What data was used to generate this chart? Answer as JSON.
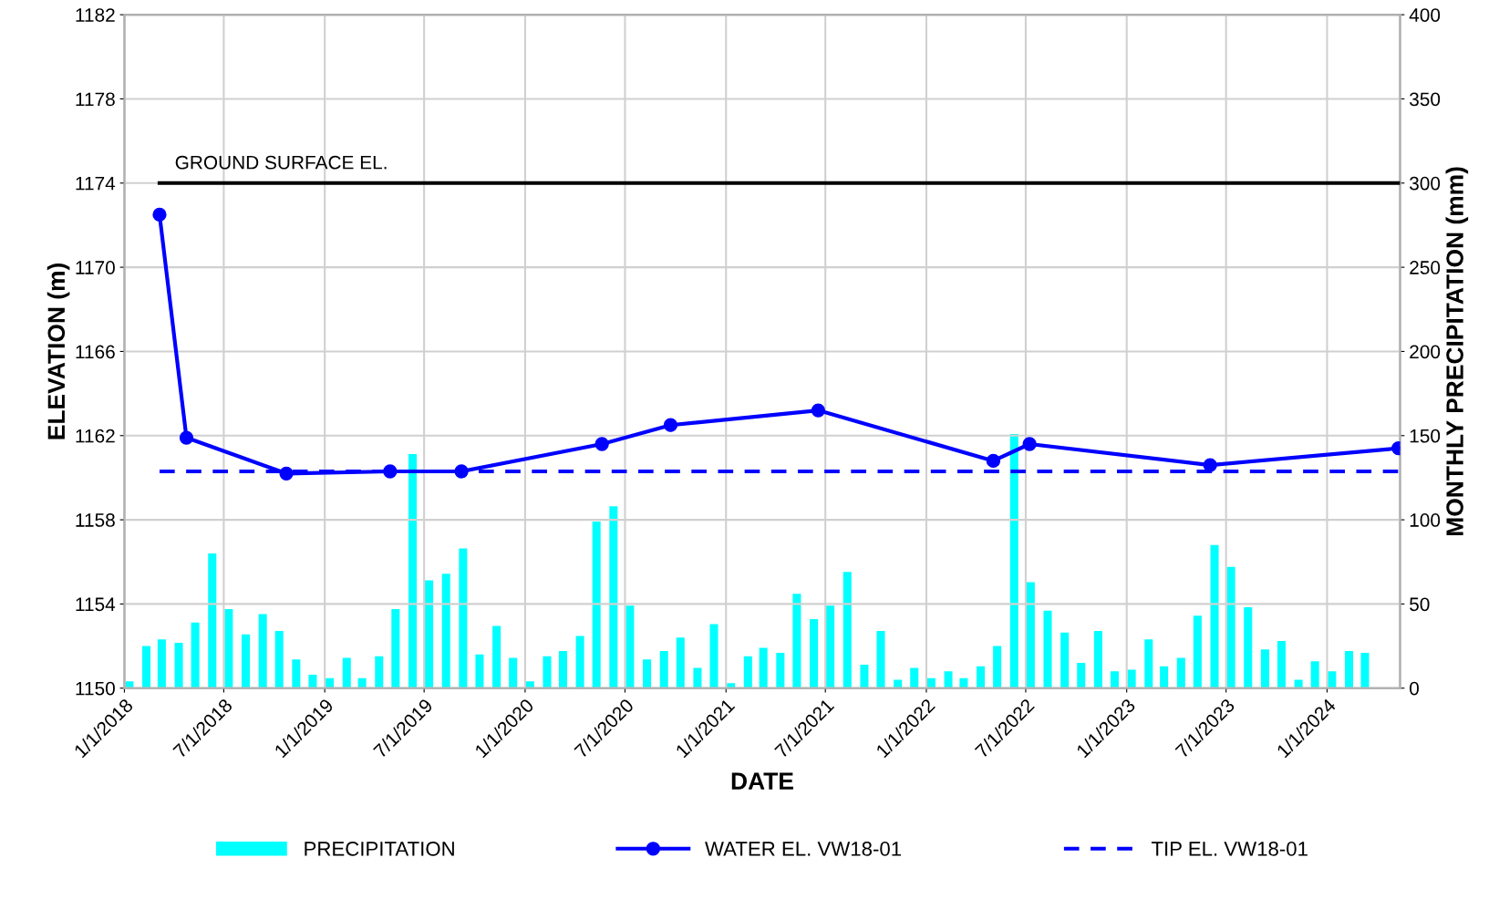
{
  "chart_data": {
    "type": "line",
    "xlabel": "DATE",
    "ylabel": "ELEVATION (m)",
    "y2label": "MONTHLY PRECIPITATION (mm)",
    "xlim": [
      "2018-01-01",
      "2024-05-13"
    ],
    "xticks": [
      {
        "value": "2018-01-01",
        "label": "1/1/2018"
      },
      {
        "value": "2018-07-01",
        "label": "7/1/2018"
      },
      {
        "value": "2019-01-01",
        "label": "1/1/2019"
      },
      {
        "value": "2019-07-01",
        "label": "7/1/2019"
      },
      {
        "value": "2020-01-01",
        "label": "1/1/2020"
      },
      {
        "value": "2020-07-01",
        "label": "7/1/2020"
      },
      {
        "value": "2021-01-01",
        "label": "1/1/2021"
      },
      {
        "value": "2021-07-01",
        "label": "7/1/2021"
      },
      {
        "value": "2022-01-01",
        "label": "1/1/2022"
      },
      {
        "value": "2022-07-01",
        "label": "7/1/2022"
      },
      {
        "value": "2023-01-01",
        "label": "1/1/2023"
      },
      {
        "value": "2023-07-01",
        "label": "7/1/2023"
      },
      {
        "value": "2024-01-01",
        "label": "1/1/2024"
      }
    ],
    "ylim": [
      1150,
      1182
    ],
    "yticks": [
      1150,
      1154,
      1158,
      1162,
      1166,
      1170,
      1174,
      1178,
      1182
    ],
    "y2lim": [
      0,
      400
    ],
    "y2ticks": [
      0,
      50,
      100,
      150,
      200,
      250,
      300,
      350,
      400
    ],
    "grid": true,
    "legend": "bottom",
    "annotations": [
      {
        "text": "GROUND SURFACE EL.",
        "x": "2018-03-06",
        "y": 1174
      }
    ],
    "series": [
      {
        "name": "PRECIPITATION",
        "type": "bar",
        "axis": "y2",
        "color": "#00ffff",
        "x": [
          "2018-01",
          "2018-02",
          "2018-03",
          "2018-04",
          "2018-05",
          "2018-06",
          "2018-07",
          "2018-08",
          "2018-09",
          "2018-10",
          "2018-11",
          "2018-12",
          "2019-01",
          "2019-02",
          "2019-03",
          "2019-04",
          "2019-05",
          "2019-06",
          "2019-07",
          "2019-08",
          "2019-09",
          "2019-10",
          "2019-11",
          "2019-12",
          "2020-01",
          "2020-02",
          "2020-03",
          "2020-04",
          "2020-05",
          "2020-06",
          "2020-07",
          "2020-08",
          "2020-09",
          "2020-10",
          "2020-11",
          "2020-12",
          "2021-01",
          "2021-02",
          "2021-03",
          "2021-04",
          "2021-05",
          "2021-06",
          "2021-07",
          "2021-08",
          "2021-09",
          "2021-10",
          "2021-11",
          "2021-12",
          "2022-01",
          "2022-02",
          "2022-03",
          "2022-04",
          "2022-05",
          "2022-06",
          "2022-07",
          "2022-08",
          "2022-09",
          "2022-10",
          "2022-11",
          "2022-12",
          "2023-01",
          "2023-02",
          "2023-03",
          "2023-04",
          "2023-05",
          "2023-06",
          "2023-07",
          "2023-08",
          "2023-09",
          "2023-10",
          "2023-11",
          "2023-12",
          "2024-01",
          "2024-02",
          "2024-03"
        ],
        "values": [
          4,
          25,
          29,
          27,
          39,
          80,
          47,
          32,
          44,
          34,
          17,
          8,
          6,
          18,
          6,
          19,
          47,
          139,
          64,
          68,
          83,
          20,
          37,
          18,
          4,
          19,
          22,
          31,
          99,
          108,
          49,
          17,
          22,
          30,
          12,
          38,
          3,
          19,
          24,
          21,
          56,
          41,
          49,
          69,
          14,
          34,
          5,
          12,
          6,
          10,
          6,
          13,
          25,
          151,
          63,
          46,
          33,
          15,
          34,
          10,
          11,
          29,
          13,
          18,
          43,
          85,
          72,
          48,
          23,
          28,
          5,
          16,
          10,
          22,
          21
        ]
      },
      {
        "name": "WATER EL. VW18-01",
        "color": "#0000ff",
        "marker": "circle",
        "line_style": "solid",
        "x": [
          "2018-03-06",
          "2018-04-24",
          "2018-10-23",
          "2019-04-30",
          "2019-09-07",
          "2020-05-20",
          "2020-09-22",
          "2021-06-18",
          "2022-05-03",
          "2022-07-08",
          "2023-06-02",
          "2024-05-10"
        ],
        "values": [
          1172.5,
          1161.9,
          1160.2,
          1160.3,
          1160.3,
          1161.6,
          1162.5,
          1163.2,
          1160.8,
          1161.6,
          1160.6,
          1161.4
        ]
      },
      {
        "name": "TIP EL. VW18-01",
        "color": "#0000ff",
        "line_style": "dashed",
        "x": [
          "2018-03-06",
          "2024-05-10"
        ],
        "values": [
          1160.3,
          1160.3
        ]
      },
      {
        "color": "#000000",
        "line_style": "solid",
        "x": [
          "2018-03-06",
          "2024-05-10"
        ],
        "values": [
          1174,
          1174
        ]
      }
    ]
  }
}
